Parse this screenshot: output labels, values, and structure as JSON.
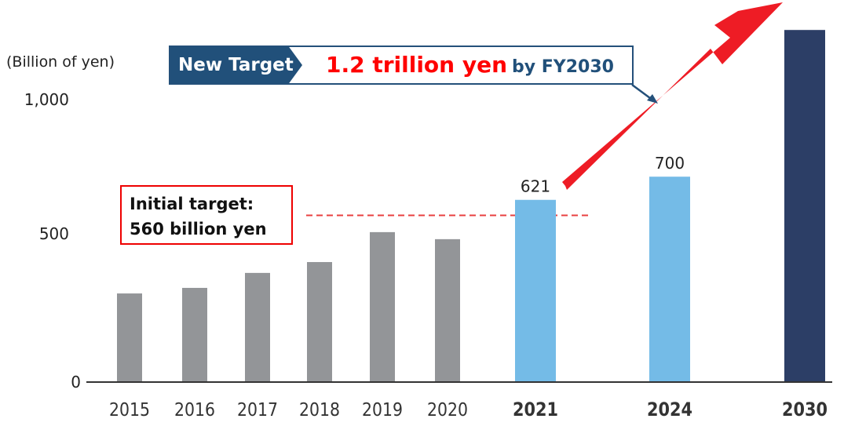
{
  "chart_data": {
    "type": "bar",
    "title": "",
    "ylabel": "(Billion of yen)",
    "xlabel": "",
    "ylim": [
      0,
      1000
    ],
    "yticks": [
      "0",
      "500",
      "1,000"
    ],
    "ytick_values": [
      0,
      500,
      1000
    ],
    "categories": [
      "2015",
      "2016",
      "2017",
      "2018",
      "2019",
      "2020",
      "2021",
      "2024",
      "2030"
    ],
    "values": [
      302,
      321,
      372,
      409,
      511,
      487,
      621,
      700,
      1200
    ],
    "bar_kinds": [
      "actual",
      "actual",
      "actual",
      "actual",
      "actual",
      "actual",
      "actual-highlight",
      "target",
      "target-2030"
    ],
    "data_labels": {
      "2021": "621",
      "2024": "700"
    },
    "colors": {
      "actual": "#939598",
      "actual-highlight": "#74bbe7",
      "target": "#74bbe7",
      "target-2030": "#2c3e66",
      "arrow": "#ee1c25",
      "dashed": "#e84040"
    },
    "initial_target": {
      "value": 560,
      "line1": "Initial target:",
      "line2": "560 billion yen"
    },
    "new_target": {
      "label": "New Target",
      "main": "1.2 trillion yen",
      "by": "by FY2030",
      "value": 1200
    }
  }
}
